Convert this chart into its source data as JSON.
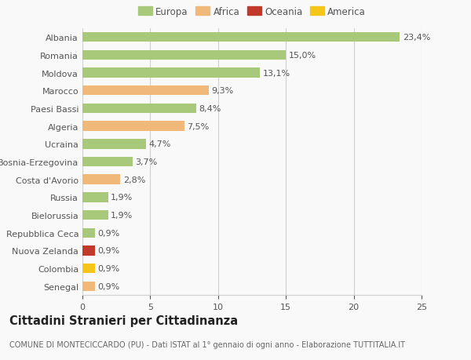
{
  "categories": [
    "Albania",
    "Romania",
    "Moldova",
    "Marocco",
    "Paesi Bassi",
    "Algeria",
    "Ucraina",
    "Bosnia-Erzegovina",
    "Costa d'Avorio",
    "Russia",
    "Bielorussia",
    "Repubblica Ceca",
    "Nuova Zelanda",
    "Colombia",
    "Senegal"
  ],
  "values": [
    23.4,
    15.0,
    13.1,
    9.3,
    8.4,
    7.5,
    4.7,
    3.7,
    2.8,
    1.9,
    1.9,
    0.9,
    0.9,
    0.9,
    0.9
  ],
  "labels": [
    "23,4%",
    "15,0%",
    "13,1%",
    "9,3%",
    "8,4%",
    "7,5%",
    "4,7%",
    "3,7%",
    "2,8%",
    "1,9%",
    "1,9%",
    "0,9%",
    "0,9%",
    "0,9%",
    "0,9%"
  ],
  "continent": [
    "Europa",
    "Europa",
    "Europa",
    "Africa",
    "Europa",
    "Africa",
    "Europa",
    "Europa",
    "Africa",
    "Europa",
    "Europa",
    "Europa",
    "Oceania",
    "America",
    "Africa"
  ],
  "colors": {
    "Europa": "#a8c87a",
    "Africa": "#f0b97a",
    "Oceania": "#c0392b",
    "America": "#f5c518"
  },
  "legend_order": [
    "Europa",
    "Africa",
    "Oceania",
    "America"
  ],
  "legend_colors": [
    "#a8c87a",
    "#f0b97a",
    "#c0392b",
    "#f5c518"
  ],
  "title": "Cittadini Stranieri per Cittadinanza",
  "subtitle": "COMUNE DI MONTECICCARDO (PU) - Dati ISTAT al 1° gennaio di ogni anno - Elaborazione TUTTITALIA.IT",
  "xlim": [
    0,
    25
  ],
  "xticks": [
    0,
    5,
    10,
    15,
    20,
    25
  ],
  "background_color": "#f9f9f9",
  "bar_height": 0.55,
  "grid_color": "#d0d0d0",
  "label_fontsize": 8,
  "tick_fontsize": 8,
  "ytick_fontsize": 8,
  "title_fontsize": 10.5,
  "subtitle_fontsize": 7
}
